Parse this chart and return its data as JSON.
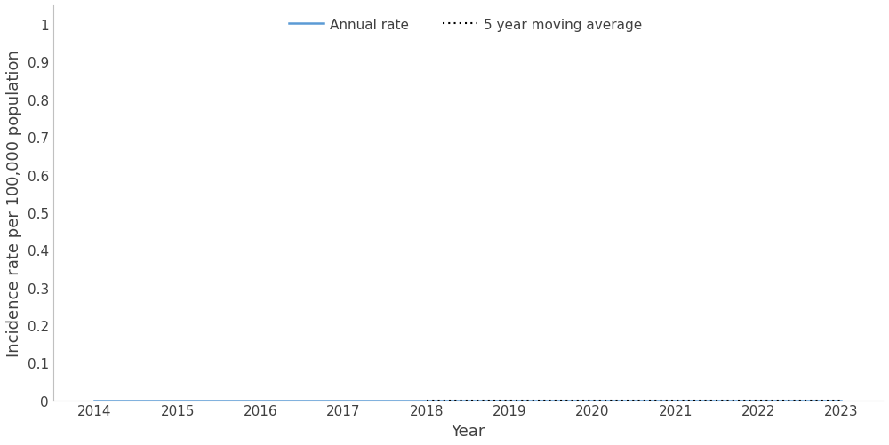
{
  "years": [
    2014,
    2015,
    2016,
    2017,
    2018,
    2019,
    2020,
    2021,
    2022,
    2023
  ],
  "annual_rate": [
    0.0,
    0.0,
    0.0,
    0.0,
    0.0,
    0.0,
    0.0,
    0.0,
    0.0,
    0.0
  ],
  "moving_avg_years": [
    2018,
    2019,
    2020,
    2021,
    2022,
    2023
  ],
  "moving_avg": [
    0.0,
    0.0,
    0.0,
    0.0,
    0.0,
    0.0
  ],
  "annual_rate_color": "#5B9BD5",
  "moving_avg_color": "#000000",
  "xlabel": "Year",
  "ylabel": "Incidence rate per 100,000 population",
  "ylim": [
    0,
    1.05
  ],
  "yticks": [
    0,
    0.1,
    0.2,
    0.3,
    0.4,
    0.5,
    0.6,
    0.7,
    0.8,
    0.9,
    1.0
  ],
  "ytick_labels": [
    "0",
    "0.1",
    "0.2",
    "0.3",
    "0.4",
    "0.5",
    "0.6",
    "0.7",
    "0.8",
    "0.9",
    "1"
  ],
  "xlim": [
    2013.5,
    2023.5
  ],
  "xticks": [
    2014,
    2015,
    2016,
    2017,
    2018,
    2019,
    2020,
    2021,
    2022,
    2023
  ],
  "legend_annual_label": "Annual rate",
  "legend_moving_label": "5 year moving average",
  "background_color": "#ffffff",
  "annual_rate_linewidth": 1.8,
  "moving_avg_linewidth": 1.5,
  "axis_label_fontsize": 13,
  "tick_fontsize": 11,
  "legend_fontsize": 11,
  "text_color": "#404040",
  "spine_color": "#c0c0c0"
}
